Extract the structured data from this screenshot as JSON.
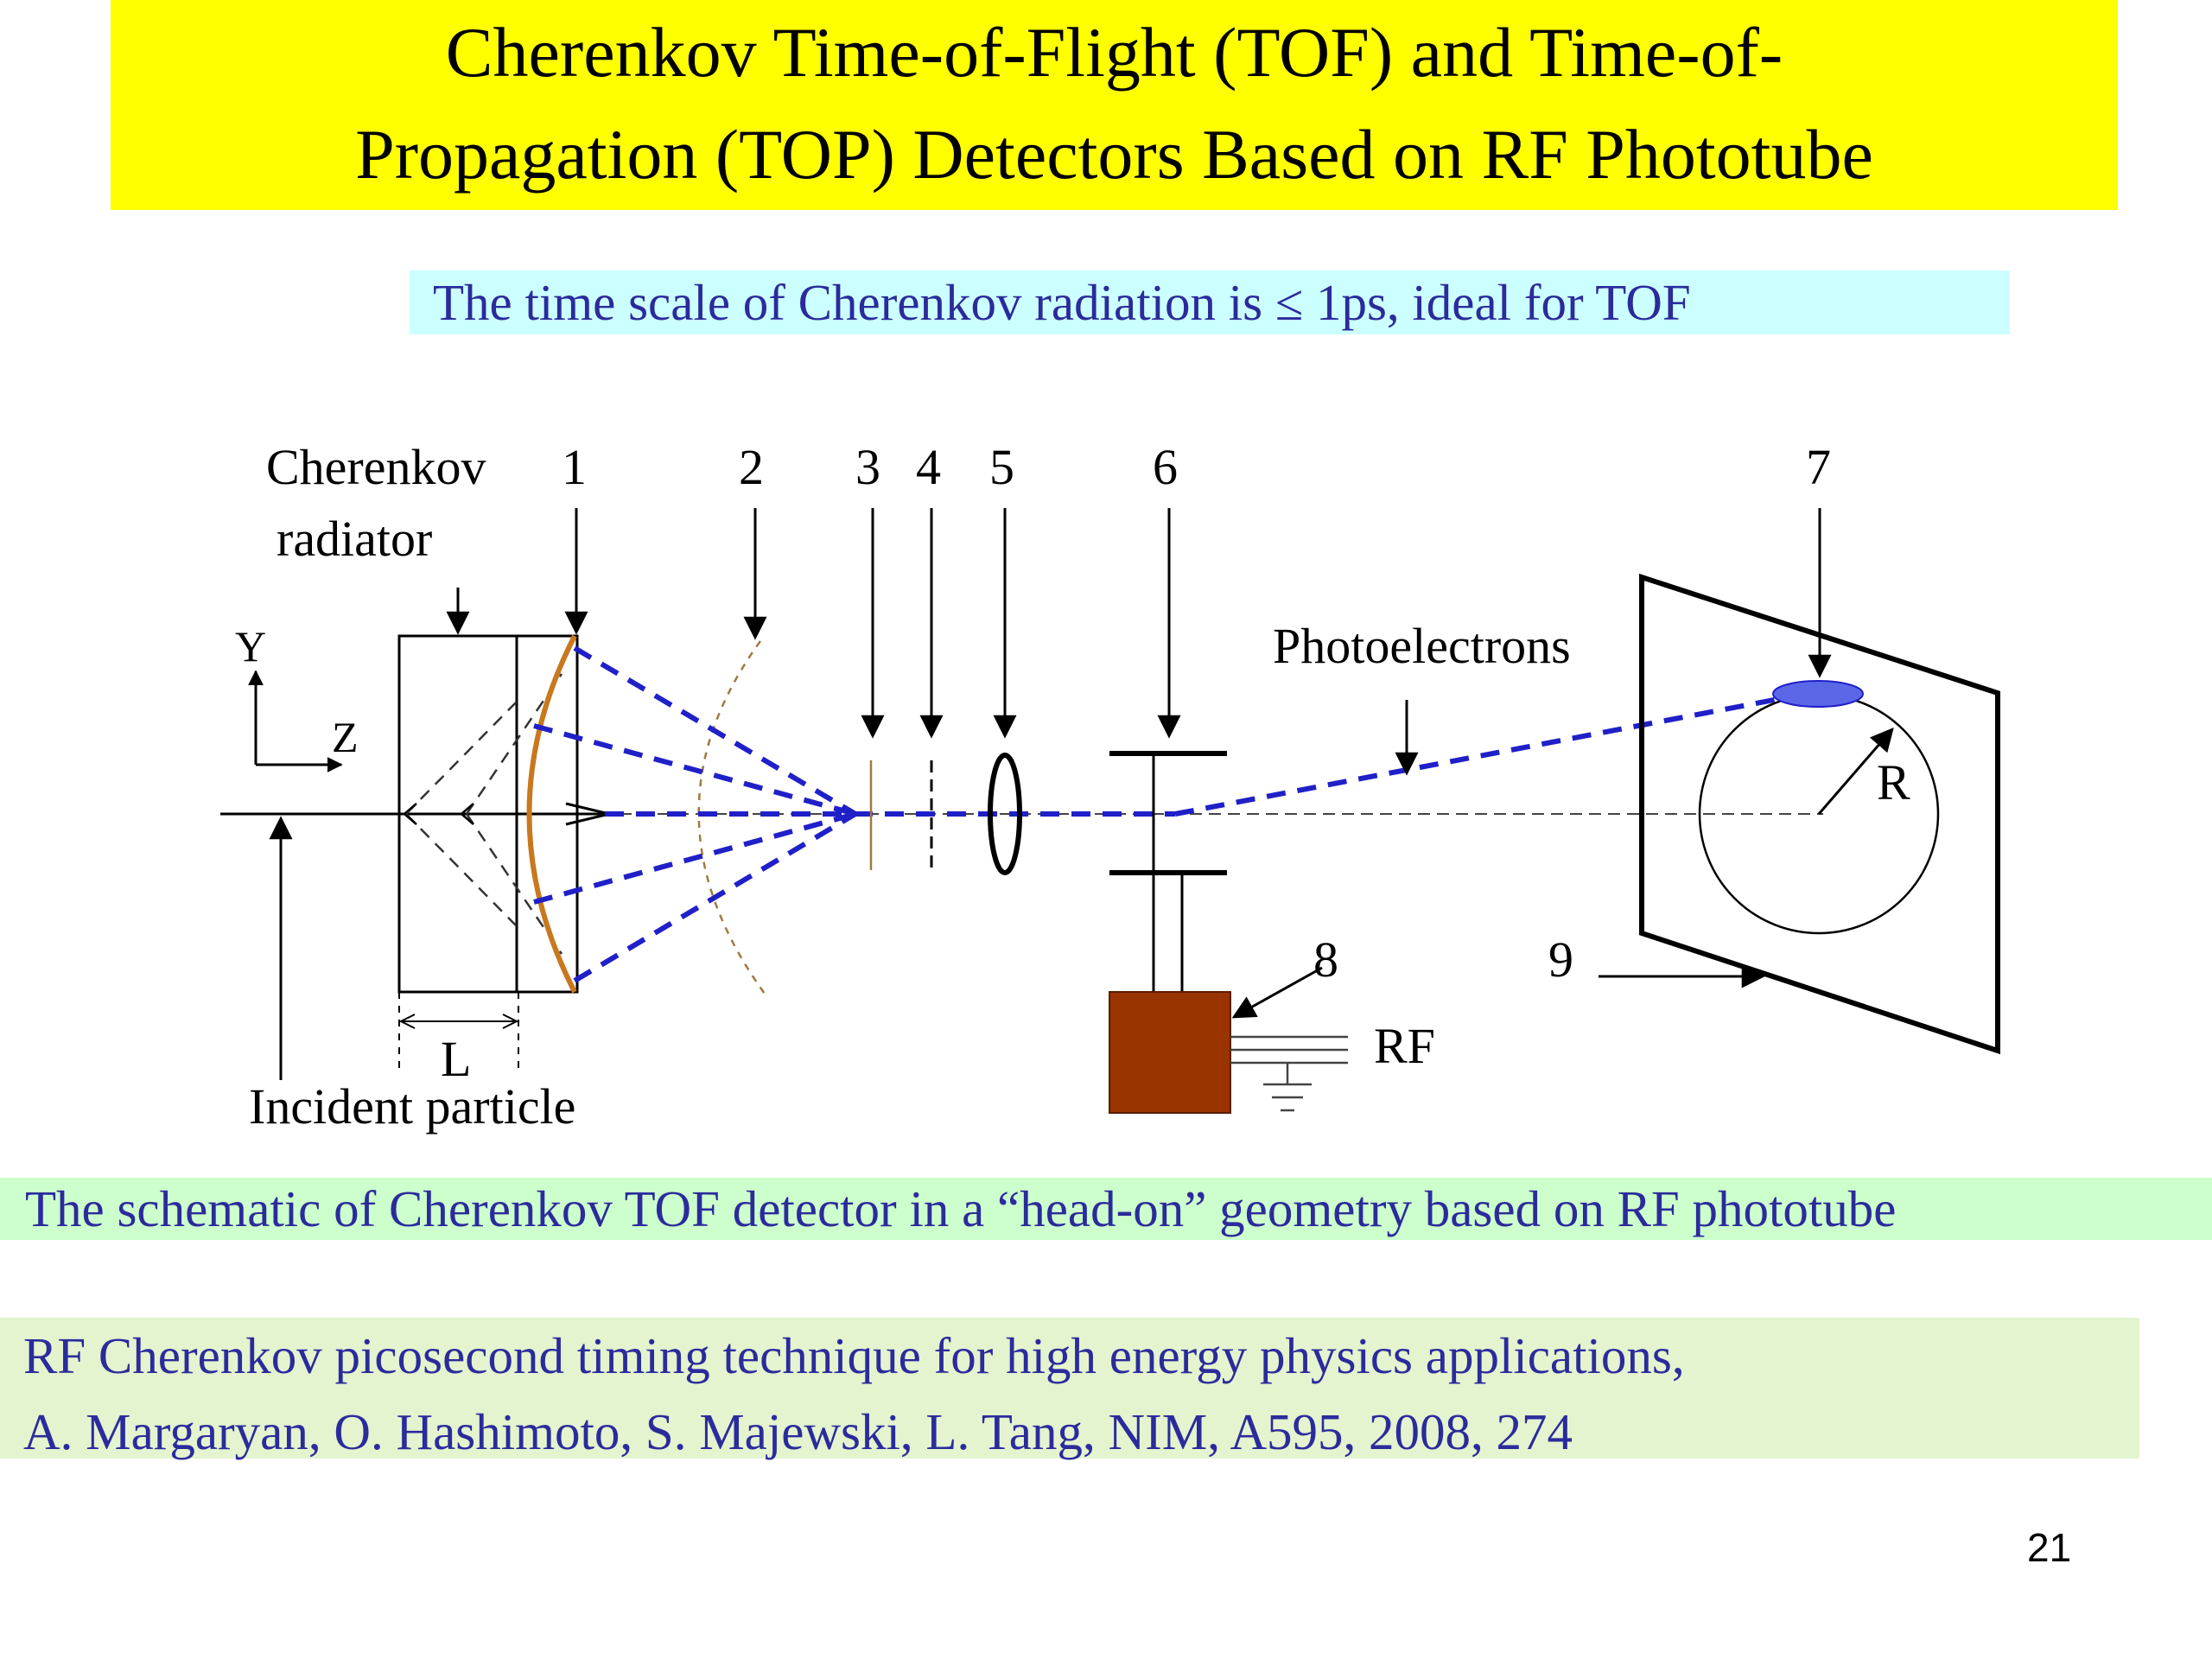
{
  "title": {
    "line1": "Cherenkov Time-of-Flight (TOF) and Time-of-",
    "line2": "Propagation (TOP) Detectors Based on RF Phototube"
  },
  "subtitle": "The time scale of Cherenkov radiation is ≤ 1ps, ideal for TOF",
  "diagram": {
    "labels": {
      "cherenkov": "Cherenkov",
      "radiator": "radiator",
      "n1": "1",
      "n2": "2",
      "n3": "3",
      "n4": "4",
      "n5": "5",
      "n6": "6",
      "n7": "7",
      "n8": "8",
      "n9": "9",
      "y_axis": "Y",
      "z_axis": "Z",
      "photoelectrons": "Photoelectrons",
      "radius": "R",
      "rf": "RF",
      "length": "L",
      "incident_particle": "Incident particle"
    },
    "colors": {
      "photon_rays": "#2020c8",
      "mirror": "#c8781e",
      "rf_box": "#993300",
      "spot": "#5a68e8"
    }
  },
  "caption": "The schematic of Cherenkov TOF detector in a “head-on” geometry  based on RF phototube",
  "reference": {
    "line1": "RF Cherenkov picosecond timing technique for high energy physics applications,",
    "line2": "A. Margaryan, O. Hashimoto, S. Majewski, L. Tang, NIM, A595, 2008, 274"
  },
  "page_number": "21"
}
